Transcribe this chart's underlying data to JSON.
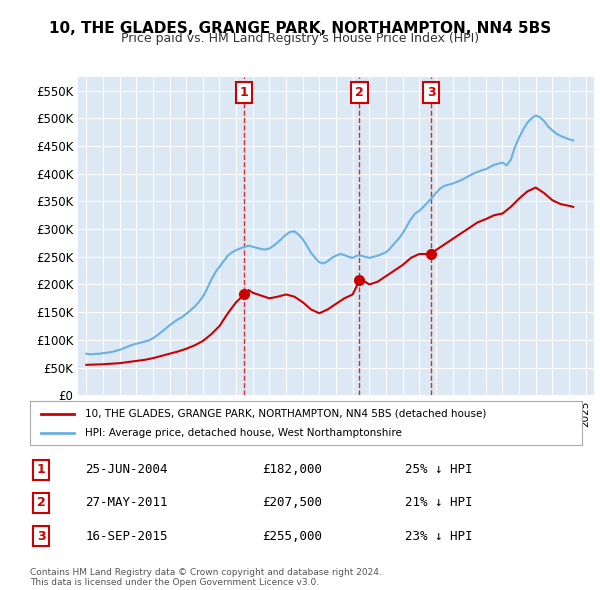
{
  "title": "10, THE GLADES, GRANGE PARK, NORTHAMPTON, NN4 5BS",
  "subtitle": "Price paid vs. HM Land Registry's House Price Index (HPI)",
  "legend_line1": "10, THE GLADES, GRANGE PARK, NORTHAMPTON, NN4 5BS (detached house)",
  "legend_line2": "HPI: Average price, detached house, West Northamptonshire",
  "footer1": "Contains HM Land Registry data © Crown copyright and database right 2024.",
  "footer2": "This data is licensed under the Open Government Licence v3.0.",
  "transactions": [
    {
      "num": 1,
      "date": "25-JUN-2004",
      "price": 182000,
      "pct": "25%",
      "year": 2004.49
    },
    {
      "num": 2,
      "date": "27-MAY-2011",
      "price": 207500,
      "pct": "21%",
      "year": 2011.41
    },
    {
      "num": 3,
      "date": "16-SEP-2015",
      "price": 255000,
      "pct": "23%",
      "year": 2015.71
    }
  ],
  "hpi_color": "#6ab0e0",
  "price_color": "#cc0000",
  "marker_box_color": "#cc0000",
  "background_color": "#dce9f5",
  "ylim": [
    0,
    575000
  ],
  "yticks": [
    0,
    50000,
    100000,
    150000,
    200000,
    250000,
    300000,
    350000,
    400000,
    450000,
    500000,
    550000
  ],
  "xlim": [
    1994.5,
    2025.5
  ],
  "hpi_data": {
    "years": [
      1995.0,
      1995.25,
      1995.5,
      1995.75,
      1996.0,
      1996.25,
      1996.5,
      1996.75,
      1997.0,
      1997.25,
      1997.5,
      1997.75,
      1998.0,
      1998.25,
      1998.5,
      1998.75,
      1999.0,
      1999.25,
      1999.5,
      1999.75,
      2000.0,
      2000.25,
      2000.5,
      2000.75,
      2001.0,
      2001.25,
      2001.5,
      2001.75,
      2002.0,
      2002.25,
      2002.5,
      2002.75,
      2003.0,
      2003.25,
      2003.5,
      2003.75,
      2004.0,
      2004.25,
      2004.5,
      2004.75,
      2005.0,
      2005.25,
      2005.5,
      2005.75,
      2006.0,
      2006.25,
      2006.5,
      2006.75,
      2007.0,
      2007.25,
      2007.5,
      2007.75,
      2008.0,
      2008.25,
      2008.5,
      2008.75,
      2009.0,
      2009.25,
      2009.5,
      2009.75,
      2010.0,
      2010.25,
      2010.5,
      2010.75,
      2011.0,
      2011.25,
      2011.5,
      2011.75,
      2012.0,
      2012.25,
      2012.5,
      2012.75,
      2013.0,
      2013.25,
      2013.5,
      2013.75,
      2014.0,
      2014.25,
      2014.5,
      2014.75,
      2015.0,
      2015.25,
      2015.5,
      2015.75,
      2016.0,
      2016.25,
      2016.5,
      2016.75,
      2017.0,
      2017.25,
      2017.5,
      2017.75,
      2018.0,
      2018.25,
      2018.5,
      2018.75,
      2019.0,
      2019.25,
      2019.5,
      2019.75,
      2020.0,
      2020.25,
      2020.5,
      2020.75,
      2021.0,
      2021.25,
      2021.5,
      2021.75,
      2022.0,
      2022.25,
      2022.5,
      2022.75,
      2023.0,
      2023.25,
      2023.5,
      2023.75,
      2024.0,
      2024.25
    ],
    "values": [
      75000,
      74000,
      74500,
      75000,
      76000,
      77000,
      78000,
      80000,
      82000,
      85000,
      88000,
      91000,
      93000,
      95000,
      97000,
      99000,
      103000,
      108000,
      114000,
      120000,
      126000,
      132000,
      137000,
      141000,
      147000,
      153000,
      160000,
      168000,
      178000,
      192000,
      208000,
      222000,
      232000,
      242000,
      252000,
      258000,
      262000,
      265000,
      268000,
      270000,
      268000,
      266000,
      264000,
      263000,
      265000,
      270000,
      276000,
      283000,
      290000,
      295000,
      296000,
      290000,
      282000,
      270000,
      257000,
      248000,
      240000,
      238000,
      242000,
      248000,
      252000,
      255000,
      253000,
      250000,
      248000,
      252000,
      252000,
      250000,
      248000,
      250000,
      252000,
      255000,
      258000,
      265000,
      274000,
      282000,
      292000,
      305000,
      318000,
      328000,
      333000,
      340000,
      348000,
      356000,
      365000,
      373000,
      378000,
      380000,
      382000,
      385000,
      388000,
      392000,
      396000,
      400000,
      403000,
      406000,
      408000,
      412000,
      416000,
      418000,
      420000,
      415000,
      425000,
      448000,
      465000,
      480000,
      492000,
      500000,
      505000,
      502000,
      495000,
      485000,
      478000,
      472000,
      468000,
      465000,
      462000,
      460000
    ]
  },
  "price_data": {
    "years": [
      1995.0,
      1995.5,
      1996.0,
      1996.5,
      1997.0,
      1997.5,
      1998.0,
      1998.5,
      1999.0,
      1999.5,
      2000.0,
      2000.5,
      2001.0,
      2001.5,
      2002.0,
      2002.5,
      2003.0,
      2003.5,
      2004.0,
      2004.49,
      2004.75,
      2005.0,
      2005.5,
      2006.0,
      2006.5,
      2007.0,
      2007.5,
      2008.0,
      2008.5,
      2009.0,
      2009.5,
      2010.0,
      2010.5,
      2011.0,
      2011.41,
      2011.75,
      2012.0,
      2012.5,
      2013.0,
      2013.5,
      2014.0,
      2014.5,
      2015.0,
      2015.71,
      2016.0,
      2016.5,
      2017.0,
      2017.5,
      2018.0,
      2018.5,
      2019.0,
      2019.5,
      2020.0,
      2020.5,
      2021.0,
      2021.5,
      2022.0,
      2022.5,
      2023.0,
      2023.5,
      2024.0,
      2024.25
    ],
    "values": [
      55000,
      55500,
      56000,
      57000,
      58000,
      60000,
      62000,
      64000,
      67000,
      71000,
      75000,
      79000,
      84000,
      90000,
      98000,
      110000,
      125000,
      148000,
      168000,
      182000,
      190000,
      185000,
      180000,
      175000,
      178000,
      182000,
      178000,
      168000,
      155000,
      148000,
      155000,
      165000,
      175000,
      182000,
      207500,
      205000,
      200000,
      205000,
      215000,
      225000,
      235000,
      248000,
      255000,
      255000,
      262000,
      272000,
      282000,
      292000,
      302000,
      312000,
      318000,
      325000,
      328000,
      340000,
      355000,
      368000,
      375000,
      365000,
      352000,
      345000,
      342000,
      340000
    ]
  }
}
